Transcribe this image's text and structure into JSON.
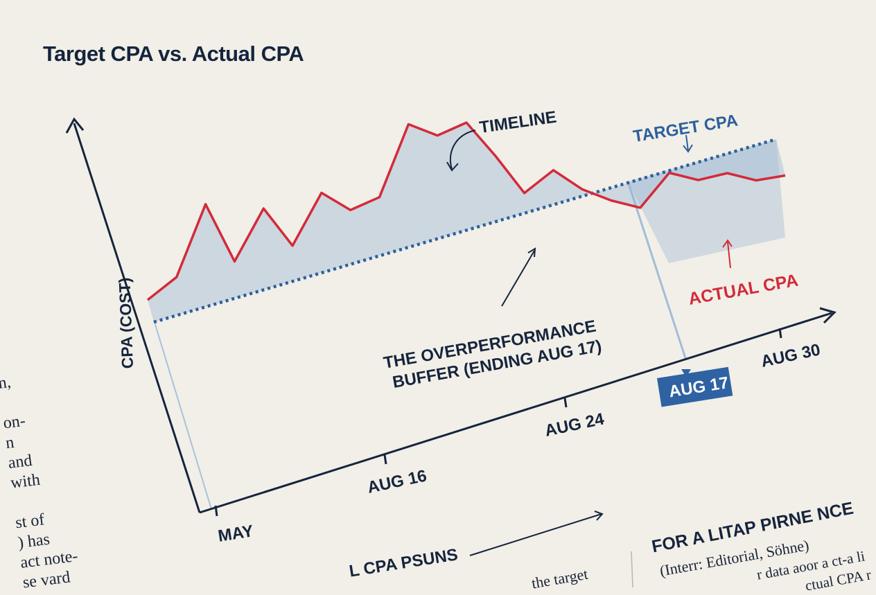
{
  "title": "Target CPA vs. Actual CPA",
  "chart_data": {
    "type": "line",
    "title": "Target CPA vs. Actual CPA",
    "ylabel": "CPA (COST)",
    "xlabel": "",
    "x_ticks": [
      "MAY",
      "AUG 16",
      "AUG 24",
      "AUG 17",
      "AUG 30"
    ],
    "series": [
      {
        "name": "ACTUAL CPA",
        "color": "#d42a3a",
        "style": "solid",
        "values": [
          0.0,
          0.1,
          0.45,
          0.15,
          0.4,
          0.2,
          0.45,
          0.35,
          0.4,
          0.75,
          0.68,
          0.73,
          0.55,
          0.35,
          0.45,
          0.34,
          0.27,
          0.22,
          0.38,
          0.33,
          0.35,
          0.3,
          0.31
        ]
      },
      {
        "name": "TARGET CPA",
        "color": "#2d5f9c",
        "style": "dotted",
        "values": [
          0.0,
          0.68
        ]
      }
    ],
    "annotations": {
      "timeline": "TIMELINE",
      "target_cpa": "TARGET CPA",
      "actual_cpa": "ACTUAL CPA",
      "buffer_line1": "THE OVERPERFORMANCE",
      "buffer_line2": "BUFFER (ENDING AUG 17)",
      "highlight_tick": "AUG 17"
    },
    "grid": false
  },
  "sidebar_text": {
    "lines": [
      "n,",
      "",
      "on-",
      "n",
      "and",
      "with",
      "",
      "st of",
      ") has",
      "act note-",
      "se vard"
    ]
  },
  "footer": {
    "caption_left": "L CPA PSUNS",
    "caption_right": "FOR A LITAP PIRNE NCE",
    "sub_right": "(Interr: Editorial, Söhne)",
    "text_mid": "the target",
    "text_right1": "r data aoor a ct-a li",
    "text_right2": "ctual CPA r"
  }
}
